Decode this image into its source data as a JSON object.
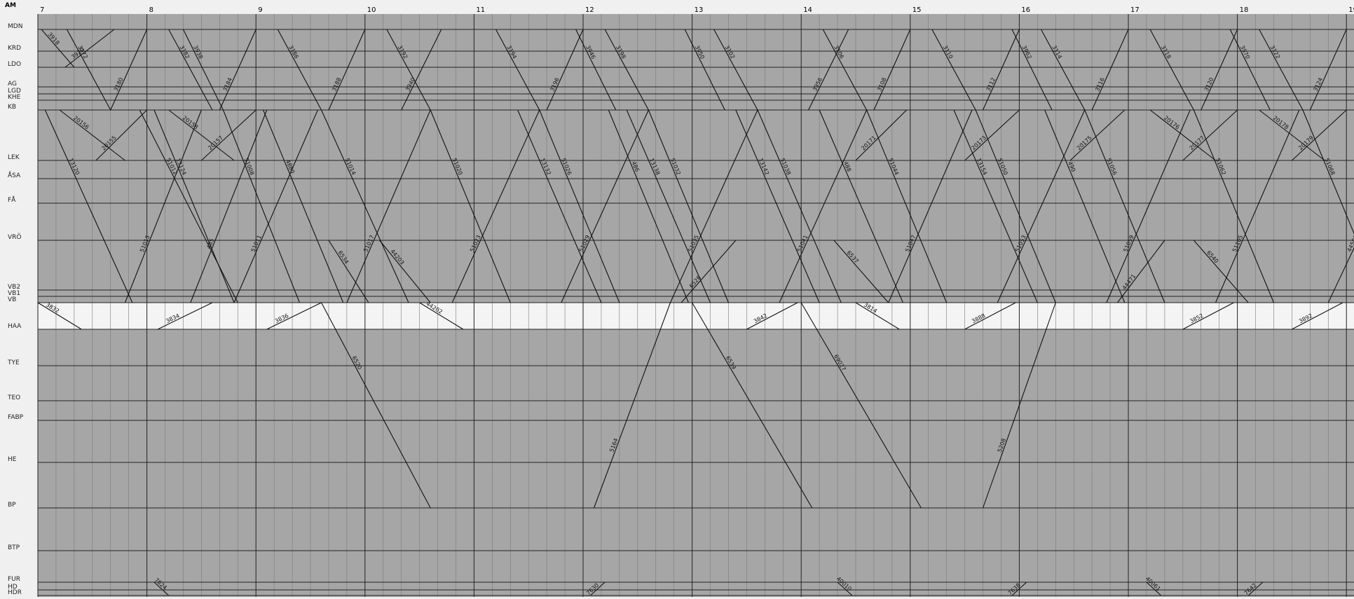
{
  "mode_label": "AM",
  "hours": [
    "7",
    "8",
    "9",
    "10",
    "11",
    "12",
    "13",
    "14",
    "15",
    "16",
    "17",
    "18",
    "19"
  ],
  "stations": [
    "MDN",
    "KRD",
    "LDO",
    "AG",
    "LGD",
    "KHE",
    "KB",
    "LEK",
    "ÅSA",
    "FÅ",
    "VRÖ",
    "VB2",
    "VB1",
    "VB",
    "HAA",
    "TYE",
    "TEO",
    "FABP",
    "HE",
    "BP",
    "BTP",
    "FUR",
    "HD",
    "HDR"
  ],
  "colors": {
    "page": "#f0f0f0",
    "plot": "#a6a6a6",
    "band": "#f4f4f4",
    "line": "#111111"
  },
  "trains": [
    {
      "label": "3918",
      "from": "MDN",
      "to": "LDO",
      "start": "7:02",
      "end": "7:20"
    },
    {
      "label": "3920",
      "from": "LDO",
      "to": "MDN",
      "start": "7:15",
      "end": "7:42"
    },
    {
      "label": "13120",
      "from": "KB",
      "to": "VB",
      "start": "7:04",
      "end": "7:52"
    },
    {
      "label": "20156",
      "from": "KB",
      "to": "LEK",
      "start": "7:12",
      "end": "7:48"
    },
    {
      "label": "20155",
      "from": "LEK",
      "to": "KB",
      "start": "7:32",
      "end": "8:00"
    },
    {
      "label": "51012",
      "from": "KB",
      "to": "VB",
      "start": "7:56",
      "end": "8:50"
    },
    {
      "label": "51015",
      "from": "VB",
      "to": "KB",
      "start": "7:48",
      "end": "8:30"
    },
    {
      "label": "13124",
      "from": "KB",
      "to": "VB",
      "start": "8:04",
      "end": "8:48"
    },
    {
      "label": "20158",
      "from": "KB",
      "to": "LEK",
      "start": "8:12",
      "end": "8:48"
    },
    {
      "label": "20157",
      "from": "LEK",
      "to": "KB",
      "start": "8:30",
      "end": "9:00"
    },
    {
      "label": "485",
      "from": "VB",
      "to": "KB",
      "start": "8:24",
      "end": "9:06"
    },
    {
      "label": "51008",
      "from": "KB",
      "to": "VB",
      "start": "8:42",
      "end": "9:24"
    },
    {
      "label": "51011",
      "from": "VB",
      "to": "KB",
      "start": "8:48",
      "end": "9:34"
    },
    {
      "label": "4880",
      "from": "KB",
      "to": "VB",
      "start": "9:04",
      "end": "9:48"
    },
    {
      "label": "51014",
      "from": "KB",
      "to": "VB",
      "start": "9:36",
      "end": "10:24"
    },
    {
      "label": "51017",
      "from": "VB",
      "to": "KB",
      "start": "9:50",
      "end": "10:36"
    },
    {
      "label": "51020",
      "from": "KB",
      "to": "VB",
      "start": "10:36",
      "end": "11:20"
    },
    {
      "label": "51023",
      "from": "VB",
      "to": "KB",
      "start": "10:48",
      "end": "11:36"
    },
    {
      "label": "13132",
      "from": "KB",
      "to": "VB",
      "start": "11:24",
      "end": "12:10"
    },
    {
      "label": "51026",
      "from": "KB",
      "to": "VB",
      "start": "11:36",
      "end": "12:20"
    },
    {
      "label": "51029",
      "from": "VB",
      "to": "KB",
      "start": "11:48",
      "end": "12:36"
    },
    {
      "label": "486",
      "from": "KB",
      "to": "VB",
      "start": "12:14",
      "end": "12:58"
    },
    {
      "label": "13138",
      "from": "KB",
      "to": "VB",
      "start": "12:24",
      "end": "13:10"
    },
    {
      "label": "51032",
      "from": "KB",
      "to": "VB",
      "start": "12:36",
      "end": "13:20"
    },
    {
      "label": "51035",
      "from": "VB",
      "to": "KB",
      "start": "12:48",
      "end": "13:36"
    },
    {
      "label": "13142",
      "from": "KB",
      "to": "VB",
      "start": "13:24",
      "end": "14:10"
    },
    {
      "label": "51038",
      "from": "KB",
      "to": "VB",
      "start": "13:36",
      "end": "14:22"
    },
    {
      "label": "51041",
      "from": "VB",
      "to": "KB",
      "start": "13:48",
      "end": "14:36"
    },
    {
      "label": "488",
      "from": "KB",
      "to": "VB",
      "start": "14:10",
      "end": "14:56"
    },
    {
      "label": "20171",
      "from": "LEK",
      "to": "KB",
      "start": "14:30",
      "end": "14:58"
    },
    {
      "label": "51044",
      "from": "KB",
      "to": "VB",
      "start": "14:36",
      "end": "15:20"
    },
    {
      "label": "51047",
      "from": "VB",
      "to": "KB",
      "start": "14:48",
      "end": "15:34"
    },
    {
      "label": "13154",
      "from": "KB",
      "to": "VB",
      "start": "15:24",
      "end": "16:10"
    },
    {
      "label": "20173",
      "from": "LEK",
      "to": "KB",
      "start": "15:30",
      "end": "16:00"
    },
    {
      "label": "51050",
      "from": "KB",
      "to": "VB",
      "start": "15:36",
      "end": "16:20"
    },
    {
      "label": "51053",
      "from": "VB",
      "to": "KB",
      "start": "15:48",
      "end": "16:36"
    },
    {
      "label": "490",
      "from": "KB",
      "to": "VB",
      "start": "16:14",
      "end": "16:58"
    },
    {
      "label": "20175",
      "from": "LEK",
      "to": "KB",
      "start": "16:28",
      "end": "16:58"
    },
    {
      "label": "51056",
      "from": "KB",
      "to": "VB",
      "start": "16:36",
      "end": "17:20"
    },
    {
      "label": "51059",
      "from": "VB",
      "to": "KB",
      "start": "16:48",
      "end": "17:34"
    },
    {
      "label": "20176",
      "from": "KB",
      "to": "LEK",
      "start": "17:12",
      "end": "17:48"
    },
    {
      "label": "20177",
      "from": "LEK",
      "to": "KB",
      "start": "17:30",
      "end": "18:00"
    },
    {
      "label": "51062",
      "from": "KB",
      "to": "VB",
      "start": "17:36",
      "end": "18:20"
    },
    {
      "label": "51105",
      "from": "VB",
      "to": "KB",
      "start": "17:48",
      "end": "18:34"
    },
    {
      "label": "20178",
      "from": "KB",
      "to": "LEK",
      "start": "18:12",
      "end": "18:48"
    },
    {
      "label": "20179",
      "from": "LEK",
      "to": "KB",
      "start": "18:30",
      "end": "19:00"
    },
    {
      "label": "51068",
      "from": "KB",
      "to": "VB",
      "start": "18:36",
      "end": "19:20"
    },
    {
      "label": "44500",
      "from": "VB",
      "to": "KB",
      "start": "18:50",
      "end": "19:40"
    },
    {
      "label": "3938",
      "from": "MDN",
      "to": "KB",
      "start": "8:20",
      "end": "8:42"
    },
    {
      "label": "3940",
      "from": "KB",
      "to": "MDN",
      "start": "10:20",
      "end": "10:42"
    },
    {
      "label": "3946",
      "from": "MDN",
      "to": "KB",
      "start": "11:56",
      "end": "12:18"
    },
    {
      "label": "3950",
      "from": "MDN",
      "to": "KB",
      "start": "12:56",
      "end": "13:18"
    },
    {
      "label": "3956",
      "from": "KB",
      "to": "MDN",
      "start": "14:04",
      "end": "14:26"
    },
    {
      "label": "3962",
      "from": "MDN",
      "to": "KB",
      "start": "15:56",
      "end": "16:18"
    },
    {
      "label": "3970",
      "from": "MDN",
      "to": "KB",
      "start": "17:56",
      "end": "18:18"
    },
    {
      "label": "6520",
      "from": "VB",
      "to": "BP",
      "start": "9:36",
      "end": "10:36"
    },
    {
      "label": "6534",
      "from": "VRÖ",
      "to": "VB",
      "start": "9:40",
      "end": "10:02"
    },
    {
      "label": "44203",
      "from": "VRÖ",
      "to": "VB",
      "start": "10:08",
      "end": "10:36"
    },
    {
      "label": "5164",
      "from": "BP",
      "to": "VB",
      "start": "12:06",
      "end": "12:48"
    },
    {
      "label": "6526",
      "from": "VB",
      "to": "VRÖ",
      "start": "12:54",
      "end": "13:24"
    },
    {
      "label": "6539",
      "from": "VB",
      "to": "BP",
      "start": "13:00",
      "end": "14:06"
    },
    {
      "label": "6537",
      "from": "VRÖ",
      "to": "VB",
      "start": "14:18",
      "end": "14:48"
    },
    {
      "label": "69027",
      "from": "VB",
      "to": "BP",
      "start": "14:00",
      "end": "15:06"
    },
    {
      "label": "5208",
      "from": "BP",
      "to": "VB",
      "start": "15:40",
      "end": "16:20"
    },
    {
      "label": "44471",
      "from": "VB",
      "to": "VRÖ",
      "start": "16:54",
      "end": "17:20"
    },
    {
      "label": "6540",
      "from": "VRÖ",
      "to": "VB",
      "start": "17:36",
      "end": "18:06"
    },
    {
      "label": "3832",
      "from": "VB",
      "to": "HAA",
      "start": "7:00",
      "end": "7:24"
    },
    {
      "label": "3834",
      "from": "HAA",
      "to": "VB",
      "start": "8:06",
      "end": "8:36"
    },
    {
      "label": "3836",
      "from": "HAA",
      "to": "VB",
      "start": "9:06",
      "end": "9:36"
    },
    {
      "label": "44202",
      "from": "VB",
      "to": "HAA",
      "start": "10:30",
      "end": "10:54"
    },
    {
      "label": "3842",
      "from": "HAA",
      "to": "VB",
      "start": "13:30",
      "end": "13:58"
    },
    {
      "label": "3814",
      "from": "VB",
      "to": "HAA",
      "start": "14:30",
      "end": "14:54"
    },
    {
      "label": "3888",
      "from": "HAA",
      "to": "VB",
      "start": "15:30",
      "end": "15:58"
    },
    {
      "label": "3852",
      "from": "HAA",
      "to": "VB",
      "start": "17:30",
      "end": "17:58"
    },
    {
      "label": "3892",
      "from": "HAA",
      "to": "VB",
      "start": "18:30",
      "end": "18:58"
    },
    {
      "label": "7624",
      "from": "FUR",
      "to": "HDR",
      "start": "8:04",
      "end": "8:12"
    },
    {
      "label": "7630",
      "from": "HDR",
      "to": "FUR",
      "start": "12:04",
      "end": "12:12"
    },
    {
      "label": "40010",
      "from": "FUR",
      "to": "HDR",
      "start": "14:20",
      "end": "14:28"
    },
    {
      "label": "7638",
      "from": "HDR",
      "to": "FUR",
      "start": "15:56",
      "end": "16:04"
    },
    {
      "label": "40061",
      "from": "FUR",
      "to": "HDR",
      "start": "17:10",
      "end": "17:18"
    },
    {
      "label": "7642",
      "from": "HDR",
      "to": "FUR",
      "start": "18:06",
      "end": "18:14"
    },
    {
      "label": "3172",
      "from": "MDN",
      "to": "KB",
      "start": "7:16",
      "end": "7:40"
    },
    {
      "label": "3180",
      "from": "KB",
      "to": "MDN",
      "start": "7:40",
      "end": "8:00"
    },
    {
      "label": "3182",
      "from": "MDN",
      "to": "KB",
      "start": "8:12",
      "end": "8:36"
    },
    {
      "label": "3184",
      "from": "KB",
      "to": "MDN",
      "start": "8:40",
      "end": "9:00"
    },
    {
      "label": "3186",
      "from": "MDN",
      "to": "KB",
      "start": "9:12",
      "end": "9:36"
    },
    {
      "label": "3188",
      "from": "KB",
      "to": "MDN",
      "start": "9:40",
      "end": "10:00"
    },
    {
      "label": "3192",
      "from": "MDN",
      "to": "KB",
      "start": "10:12",
      "end": "10:36"
    },
    {
      "label": "3194",
      "from": "MDN",
      "to": "KB",
      "start": "11:12",
      "end": "11:36"
    },
    {
      "label": "3196",
      "from": "KB",
      "to": "MDN",
      "start": "11:40",
      "end": "12:00"
    },
    {
      "label": "3198",
      "from": "MDN",
      "to": "KB",
      "start": "12:12",
      "end": "12:36"
    },
    {
      "label": "3102",
      "from": "MDN",
      "to": "KB",
      "start": "13:12",
      "end": "13:36"
    },
    {
      "label": "3106",
      "from": "MDN",
      "to": "KB",
      "start": "14:12",
      "end": "14:36"
    },
    {
      "label": "3108",
      "from": "KB",
      "to": "MDN",
      "start": "14:40",
      "end": "15:00"
    },
    {
      "label": "3110",
      "from": "MDN",
      "to": "KB",
      "start": "15:12",
      "end": "15:36"
    },
    {
      "label": "3112",
      "from": "KB",
      "to": "MDN",
      "start": "15:40",
      "end": "16:00"
    },
    {
      "label": "3114",
      "from": "MDN",
      "to": "KB",
      "start": "16:12",
      "end": "16:36"
    },
    {
      "label": "3116",
      "from": "KB",
      "to": "MDN",
      "start": "16:40",
      "end": "17:00"
    },
    {
      "label": "3118",
      "from": "MDN",
      "to": "KB",
      "start": "17:12",
      "end": "17:36"
    },
    {
      "label": "3120",
      "from": "KB",
      "to": "MDN",
      "start": "17:40",
      "end": "18:00"
    },
    {
      "label": "3122",
      "from": "MDN",
      "to": "KB",
      "start": "18:12",
      "end": "18:36"
    },
    {
      "label": "3124",
      "from": "KB",
      "to": "MDN",
      "start": "18:40",
      "end": "19:00"
    }
  ]
}
